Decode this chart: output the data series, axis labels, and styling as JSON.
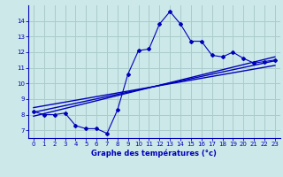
{
  "title": "Graphe des températures (°c)",
  "background_color": "#cce8e8",
  "grid_color": "#aacccc",
  "line_color": "#0000bb",
  "ylim": [
    6.5,
    15.0
  ],
  "xlim": [
    -0.5,
    23.5
  ],
  "yticks": [
    7,
    8,
    9,
    10,
    11,
    12,
    13,
    14
  ],
  "xticks": [
    0,
    1,
    2,
    3,
    4,
    5,
    6,
    7,
    8,
    9,
    10,
    11,
    12,
    13,
    14,
    15,
    16,
    17,
    18,
    19,
    20,
    21,
    22,
    23
  ],
  "curve1_x": [
    0,
    1,
    2,
    3,
    4,
    5,
    6,
    7,
    8,
    9,
    10,
    11,
    12,
    13,
    14,
    15,
    16,
    17,
    18,
    19,
    20,
    21,
    22,
    23
  ],
  "curve1_y": [
    8.2,
    8.0,
    8.0,
    8.1,
    7.3,
    7.1,
    7.1,
    6.8,
    8.3,
    10.6,
    12.1,
    12.2,
    13.8,
    14.6,
    13.8,
    12.7,
    12.7,
    11.8,
    11.7,
    12.0,
    11.6,
    11.3,
    11.4,
    11.5
  ],
  "line2_x": [
    0,
    23
  ],
  "line2_y": [
    7.9,
    11.7
  ],
  "line3_x": [
    0,
    23
  ],
  "line3_y": [
    8.15,
    11.45
  ],
  "line4_x": [
    0,
    23
  ],
  "line4_y": [
    8.45,
    11.15
  ]
}
